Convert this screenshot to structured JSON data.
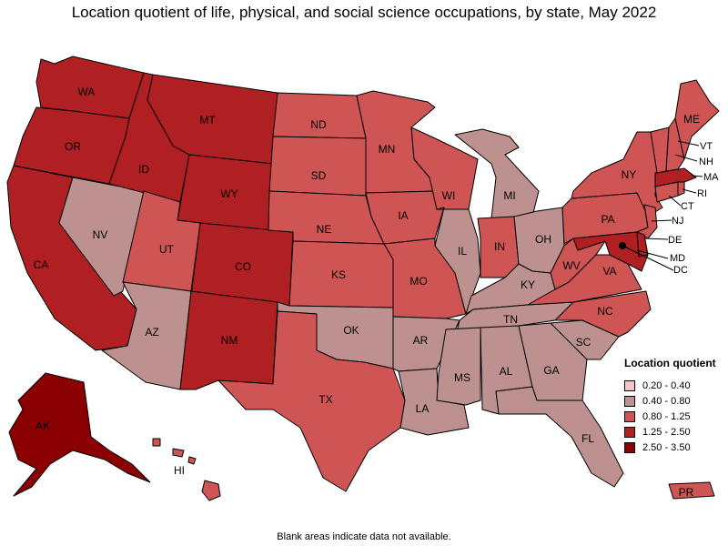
{
  "title": "Location quotient of life, physical, and social science occupations, by state, May 2022",
  "note": "Blank areas indicate data not available.",
  "legend": {
    "title": "Location quotient",
    "classes": [
      {
        "label": "0.20 - 0.40",
        "color": "#f6c3c8"
      },
      {
        "label": "0.40 - 0.80",
        "color": "#bc9190"
      },
      {
        "label": "0.80 - 1.25",
        "color": "#cf5555"
      },
      {
        "label": "1.25 - 2.50",
        "color": "#b01f21"
      },
      {
        "label": "2.50 - 3.50",
        "color": "#8b0000"
      }
    ]
  },
  "states": {
    "WA": "1.25 - 2.50",
    "OR": "1.25 - 2.50",
    "CA": "1.25 - 2.50",
    "ID": "1.25 - 2.50",
    "NV": "0.40 - 0.80",
    "MT": "1.25 - 2.50",
    "WY": "1.25 - 2.50",
    "UT": "0.80 - 1.25",
    "AZ": "0.40 - 0.80",
    "CO": "1.25 - 2.50",
    "NM": "1.25 - 2.50",
    "ND": "0.80 - 1.25",
    "SD": "0.80 - 1.25",
    "NE": "0.80 - 1.25",
    "KS": "0.80 - 1.25",
    "OK": "0.40 - 0.80",
    "TX": "0.80 - 1.25",
    "MN": "0.80 - 1.25",
    "IA": "0.80 - 1.25",
    "MO": "0.80 - 1.25",
    "AR": "0.40 - 0.80",
    "LA": "0.40 - 0.80",
    "WI": "0.80 - 1.25",
    "IL": "0.40 - 0.80",
    "MI": "0.40 - 0.80",
    "IN": "0.80 - 1.25",
    "OH": "0.40 - 0.80",
    "KY": "0.40 - 0.80",
    "TN": "0.40 - 0.80",
    "MS": "0.40 - 0.80",
    "AL": "0.40 - 0.80",
    "GA": "0.40 - 0.80",
    "FL": "0.40 - 0.80",
    "SC": "0.40 - 0.80",
    "NC": "0.80 - 1.25",
    "VA": "0.80 - 1.25",
    "WV": "0.80 - 1.25",
    "PA": "0.80 - 1.25",
    "NY": "0.80 - 1.25",
    "NJ": "0.80 - 1.25",
    "DE": "1.25 - 2.50",
    "MD": "1.25 - 2.50",
    "DC": "2.50 - 3.50",
    "CT": "0.80 - 1.25",
    "RI": "0.80 - 1.25",
    "MA": "1.25 - 2.50",
    "VT": "0.80 - 1.25",
    "NH": "0.80 - 1.25",
    "ME": "0.80 - 1.25",
    "AK": "2.50 - 3.50",
    "HI": "0.80 - 1.25",
    "PR": "0.80 - 1.25"
  }
}
